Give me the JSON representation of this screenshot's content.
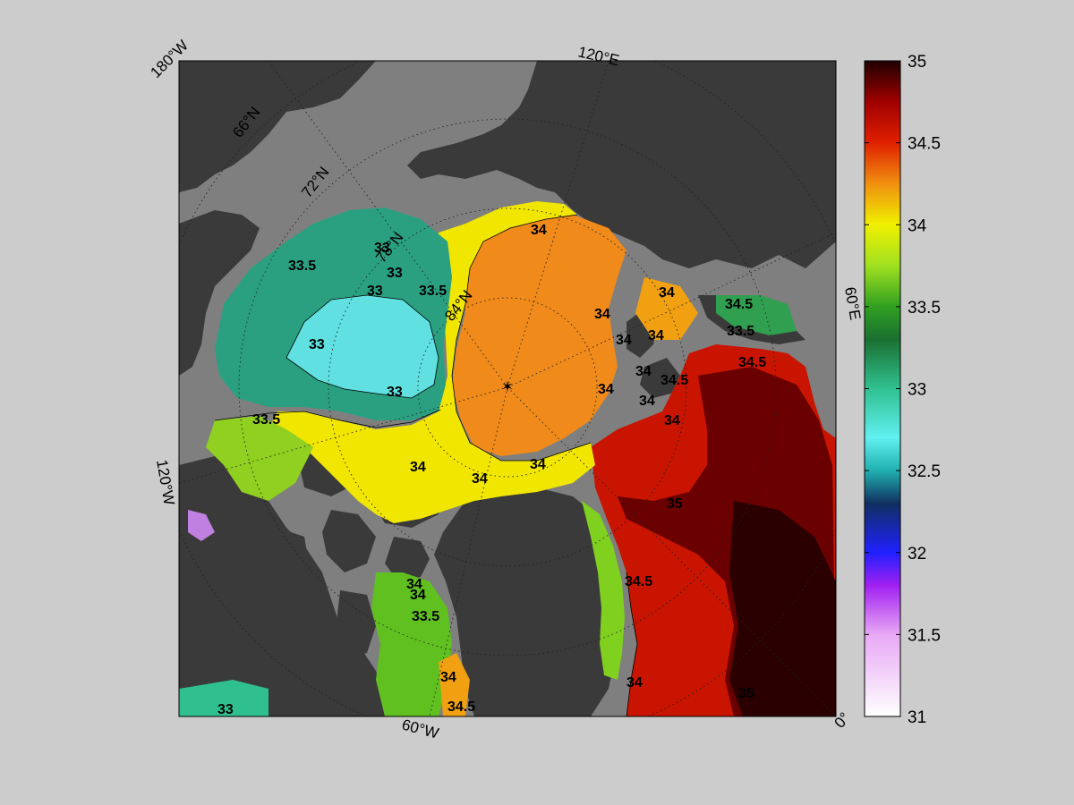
{
  "map": {
    "meridian_labels": [
      "180°W",
      "120°E",
      "60°E",
      "0°",
      "60°W",
      "120°W"
    ],
    "parallel_labels": [
      "66°N",
      "72°N",
      "78°N",
      "84°N"
    ],
    "contour_labels": [
      "33.5",
      "33",
      "33",
      "33",
      "33",
      "33",
      "33.5",
      "33.5",
      "34",
      "34",
      "34",
      "34",
      "34",
      "34",
      "34",
      "34.5",
      "34.5",
      "34",
      "34",
      "34",
      "34",
      "34",
      "34.5",
      "34",
      "33.5",
      "34",
      "34",
      "34.5",
      "34",
      "33.5",
      "35",
      "34.5",
      "35",
      "33"
    ]
  },
  "colorbar": {
    "ticks": [
      "35",
      "34.5",
      "34",
      "33.5",
      "33",
      "32.5",
      "32",
      "31.5",
      "31"
    ],
    "min": 31,
    "max": 35,
    "colormap": [
      {
        "v": 31.0,
        "c": "#ffffff"
      },
      {
        "v": 31.5,
        "c": "#e8a8f5"
      },
      {
        "v": 31.8,
        "c": "#a020f0"
      },
      {
        "v": 32.0,
        "c": "#2020ff"
      },
      {
        "v": 32.3,
        "c": "#103060"
      },
      {
        "v": 32.5,
        "c": "#20b0b0"
      },
      {
        "v": 32.7,
        "c": "#60f0f0"
      },
      {
        "v": 33.0,
        "c": "#30c090"
      },
      {
        "v": 33.3,
        "c": "#1a7030"
      },
      {
        "v": 33.5,
        "c": "#30a020"
      },
      {
        "v": 33.75,
        "c": "#a0e020"
      },
      {
        "v": 34.0,
        "c": "#f0f000"
      },
      {
        "v": 34.25,
        "c": "#f09010"
      },
      {
        "v": 34.5,
        "c": "#e02000"
      },
      {
        "v": 34.75,
        "c": "#a00000"
      },
      {
        "v": 35.0,
        "c": "#200000"
      }
    ]
  }
}
